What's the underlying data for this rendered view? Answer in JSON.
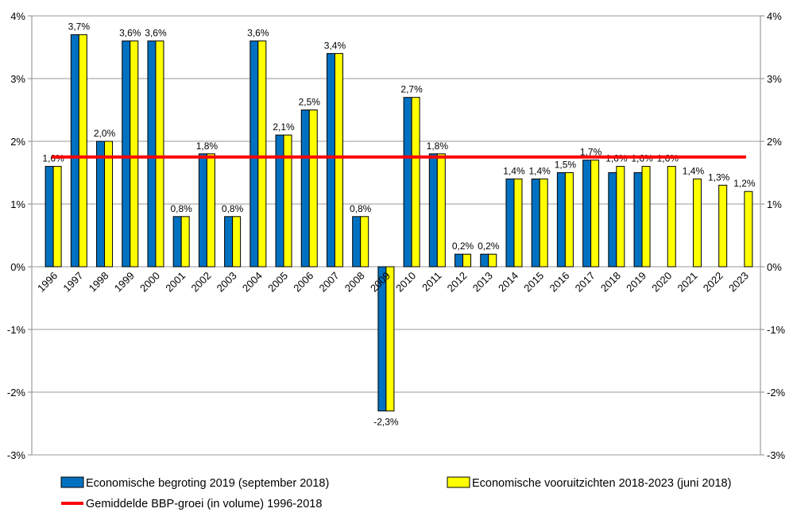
{
  "chart_data": {
    "type": "bar",
    "categories": [
      "1996",
      "1997",
      "1998",
      "1999",
      "2000",
      "2001",
      "2002",
      "2003",
      "2004",
      "2005",
      "2006",
      "2007",
      "2008",
      "2009",
      "2010",
      "2011",
      "2012",
      "2013",
      "2014",
      "2015",
      "2016",
      "2017",
      "2018",
      "2019",
      "2020",
      "2021",
      "2022",
      "2023"
    ],
    "series": [
      {
        "name": "Economische begroting 2019 (september 2018)",
        "color": "#0070c0",
        "values": [
          1.6,
          3.7,
          2.0,
          3.6,
          3.6,
          0.8,
          1.8,
          0.8,
          3.6,
          2.1,
          2.5,
          3.4,
          0.8,
          -2.3,
          2.7,
          1.8,
          0.2,
          0.2,
          1.4,
          1.4,
          1.5,
          1.7,
          1.5,
          1.5,
          null,
          null,
          null,
          null
        ]
      },
      {
        "name": "Economische vooruitzichten 2018-2023 (juni 2018)",
        "color": "#ffff00",
        "values": [
          1.6,
          3.7,
          2.0,
          3.6,
          3.6,
          0.8,
          1.8,
          0.8,
          3.6,
          2.1,
          2.5,
          3.4,
          0.8,
          -2.3,
          2.7,
          1.8,
          0.2,
          0.2,
          1.4,
          1.4,
          1.5,
          1.7,
          1.6,
          1.6,
          1.6,
          1.4,
          1.3,
          1.2
        ],
        "value_labels": [
          "1,6%",
          "3,7%",
          "2,0%",
          "3,6%",
          "3,6%",
          "0,8%",
          "1,8%",
          "0,8%",
          "3,6%",
          "2,1%",
          "2,5%",
          "3,4%",
          "0,8%",
          "-2,3%",
          "2,7%",
          "1,8%",
          "0,2%",
          "0,2%",
          "1,4%",
          "1,4%",
          "1,5%",
          "1,7%",
          "1,6%",
          "1,6%",
          "1,6%",
          "1,4%",
          "1,3%",
          "1,2%"
        ]
      }
    ],
    "reference_line": {
      "name": "Gemiddelde BBP-groei (in volume) 1996-2018",
      "color": "#ff0000",
      "value": 1.75
    },
    "ylim": [
      -3,
      4
    ],
    "yticks": [
      {
        "value": -3,
        "label": "-3%"
      },
      {
        "value": -2,
        "label": "-2%"
      },
      {
        "value": -1,
        "label": "-1%"
      },
      {
        "value": 0,
        "label": "0%"
      },
      {
        "value": 1,
        "label": "1%"
      },
      {
        "value": 2,
        "label": "2%"
      },
      {
        "value": 3,
        "label": "3%"
      },
      {
        "value": 4,
        "label": "4%"
      }
    ],
    "y2lim": [
      -3,
      4
    ],
    "y2ticks": [
      {
        "value": -3,
        "label": "-3%"
      },
      {
        "value": -2,
        "label": "-2%"
      },
      {
        "value": -1,
        "label": "-1%"
      },
      {
        "value": 0,
        "label": "0%"
      },
      {
        "value": 1,
        "label": "1%"
      },
      {
        "value": 2,
        "label": "2%"
      },
      {
        "value": 3,
        "label": "3%"
      },
      {
        "value": 4,
        "label": "4%"
      }
    ],
    "grid": true
  }
}
